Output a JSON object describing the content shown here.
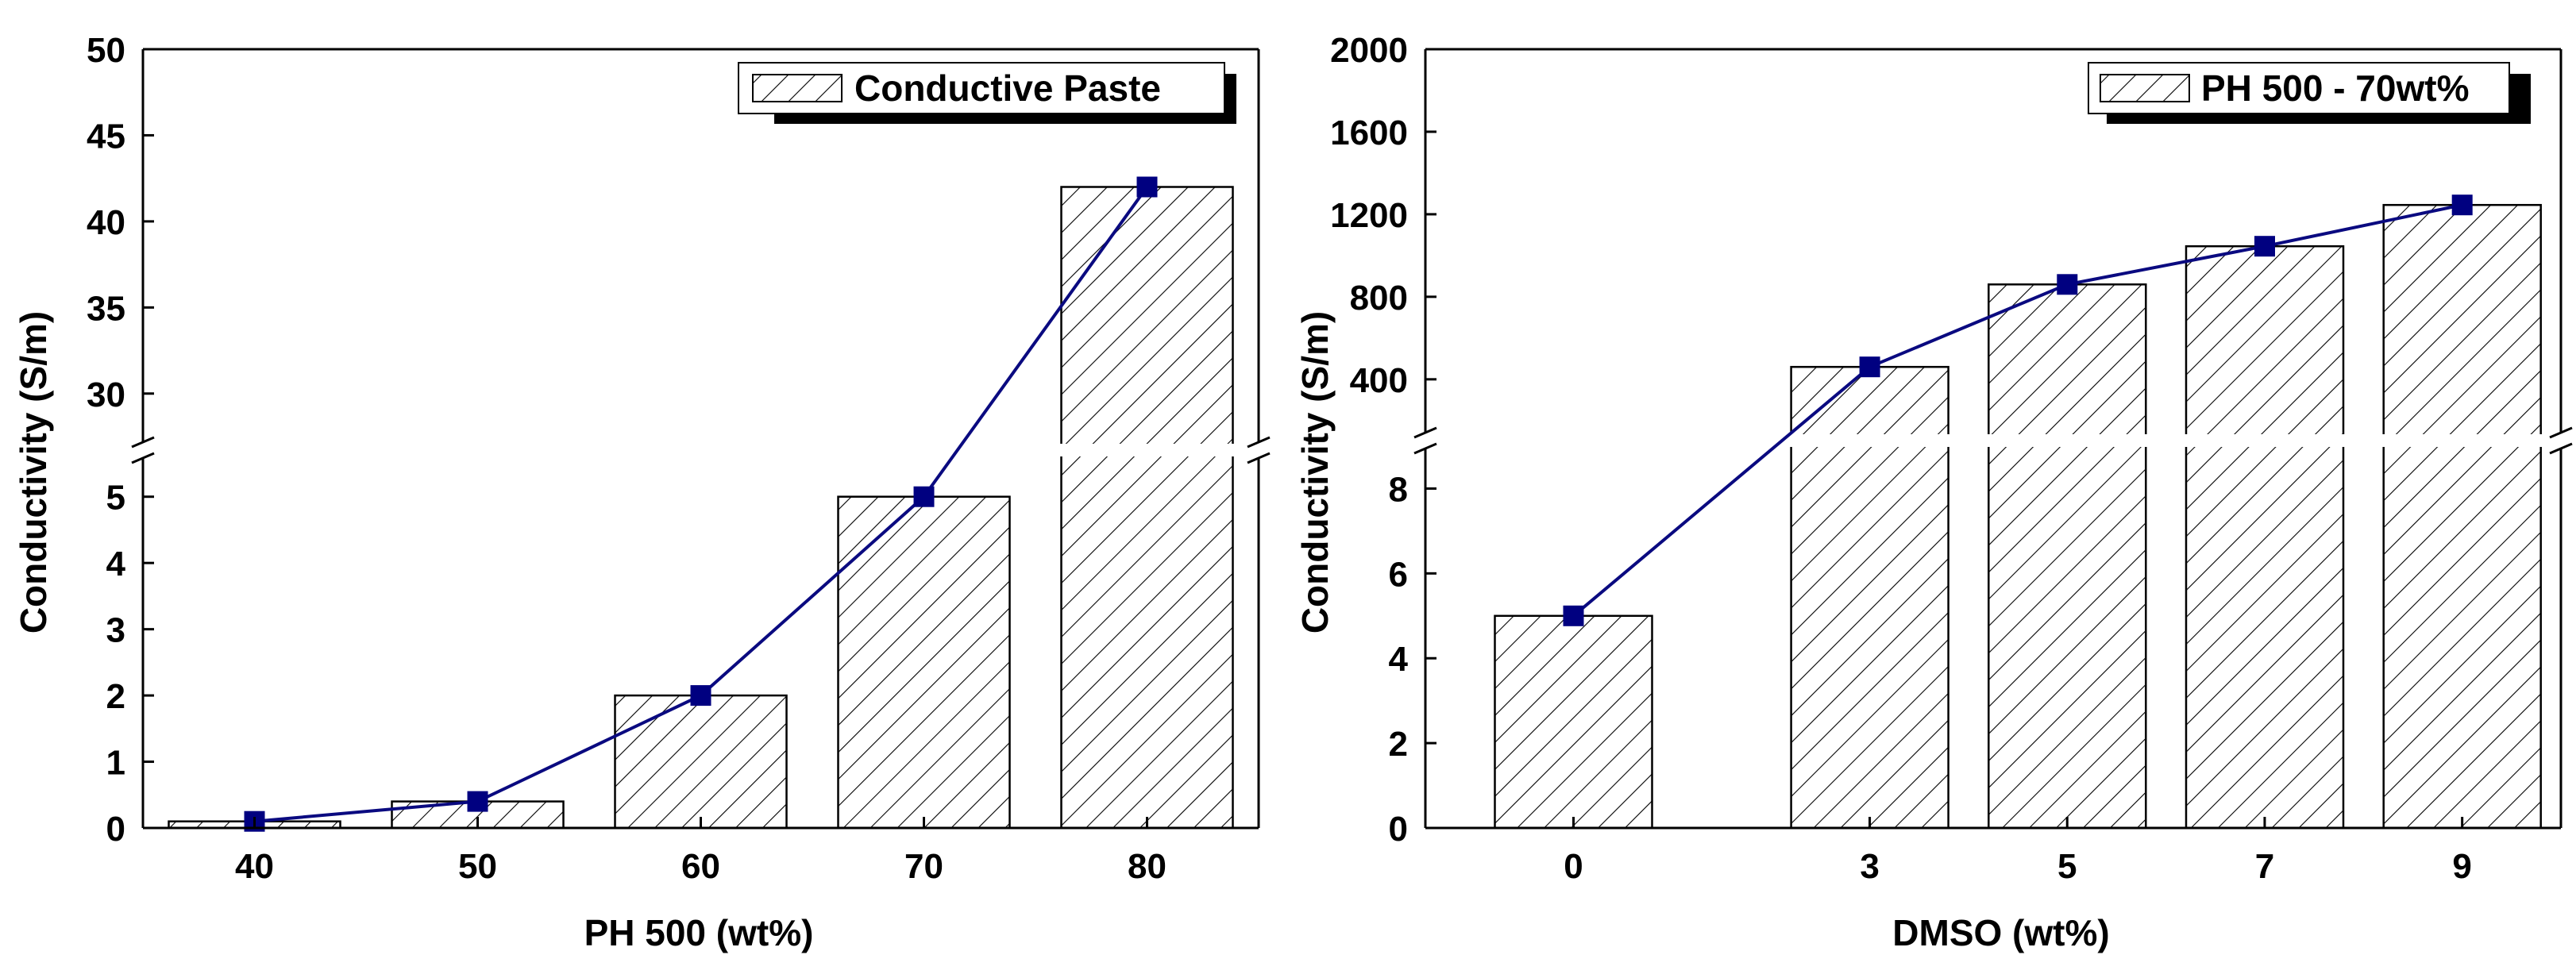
{
  "colors": {
    "line": "#0a0a80",
    "marker": "#000080",
    "bar_fill": "#ffffff",
    "bar_edge": "#000000",
    "axis": "#000000"
  },
  "chart_data": [
    {
      "type": "bar",
      "overlay": "line",
      "xlabel": "PH 500 (wt%)",
      "ylabel": "Conductivity (S/m)",
      "legend": {
        "label": "Conductive Paste",
        "placement": "top-right",
        "pattern": "diagonal-hatch"
      },
      "categories": [
        "40",
        "50",
        "60",
        "70",
        "80"
      ],
      "values": [
        0.1,
        0.4,
        2,
        5,
        42
      ],
      "y_axis_break": {
        "lower_range": [
          0,
          5.5
        ],
        "upper_range": [
          27.5,
          50
        ]
      },
      "lower_ticks": [
        "0",
        "1",
        "2",
        "3",
        "4",
        "5"
      ],
      "upper_ticks": [
        "30",
        "35",
        "40",
        "45",
        "50"
      ],
      "upper_tick_values": [
        30,
        35,
        40,
        45,
        50
      ]
    },
    {
      "type": "bar",
      "overlay": "line",
      "xlabel": "DMSO (wt%)",
      "ylabel": "Conductivity (S/m)",
      "legend": {
        "label": "PH 500 - 70wt%",
        "placement": "top-right",
        "pattern": "diagonal-hatch"
      },
      "categories": [
        "0",
        "3",
        "5",
        "7",
        "9"
      ],
      "x_values": [
        0,
        3,
        5,
        7,
        9
      ],
      "x_range": [
        -1.5,
        10
      ],
      "values": [
        5,
        460,
        860,
        1045,
        1245
      ],
      "y_axis_break": {
        "lower_range": [
          0,
          9
        ],
        "upper_range": [
          180,
          2000
        ]
      },
      "lower_ticks": [
        "0",
        "2",
        "4",
        "6",
        "8"
      ],
      "upper_ticks": [
        "400",
        "800",
        "1200",
        "1600",
        "2000"
      ],
      "upper_tick_values": [
        400,
        800,
        1200,
        1600,
        2000
      ]
    }
  ]
}
